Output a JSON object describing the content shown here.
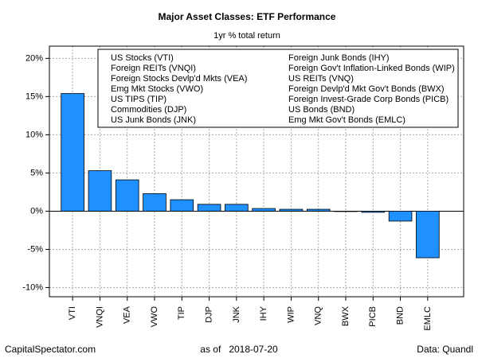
{
  "chart_data": {
    "type": "bar",
    "title": "Major Asset Classes: ETF Performance",
    "subtitle": "1yr % total return",
    "categories": [
      "VTI",
      "VNQI",
      "VEA",
      "VWO",
      "TIP",
      "DJP",
      "JNK",
      "IHY",
      "WIP",
      "VNQ",
      "BWX",
      "PICB",
      "BND",
      "EMLC"
    ],
    "values": [
      15.4,
      5.3,
      4.1,
      2.3,
      1.5,
      0.9,
      0.9,
      0.35,
      0.25,
      0.25,
      -0.05,
      -0.15,
      -1.3,
      -6.1
    ],
    "color": "#1e90ff",
    "ylim": [
      -11.2,
      21.6
    ],
    "yticks": [
      {
        "value": -10,
        "label": "-10%"
      },
      {
        "value": -5,
        "label": "-5%"
      },
      {
        "value": 0,
        "label": "0%"
      },
      {
        "value": 5,
        "label": "5%"
      },
      {
        "value": 10,
        "label": "10%"
      },
      {
        "value": 15,
        "label": "15%"
      },
      {
        "value": 20,
        "label": "20%"
      }
    ],
    "grid": true,
    "legend_entries": [
      "US Stocks (VTI)",
      "Foreign REITs (VNQI)",
      "Foreign Stocks Devlp'd Mkts (VEA)",
      "Emg Mkt Stocks (VWO)",
      "US TIPS (TIP)",
      "Commodities (DJP)",
      "US Junk Bonds (JNK)",
      "Foreign Junk Bonds (IHY)",
      "Foreign Gov't Inflation-Linked Bonds (WIP)",
      "US REITs (VNQ)",
      "Foreign Devlp'd Mkt Gov't Bonds (BWX)",
      "Foreign Invest-Grade Corp Bonds (PICB)",
      "US Bonds (BND)",
      "Emg Mkt Gov't Bonds (EMLC)"
    ],
    "footer_left": "CapitalSpectator.com",
    "footer_center": "as of   2018-07-20",
    "footer_right": "Data: Quandl"
  }
}
